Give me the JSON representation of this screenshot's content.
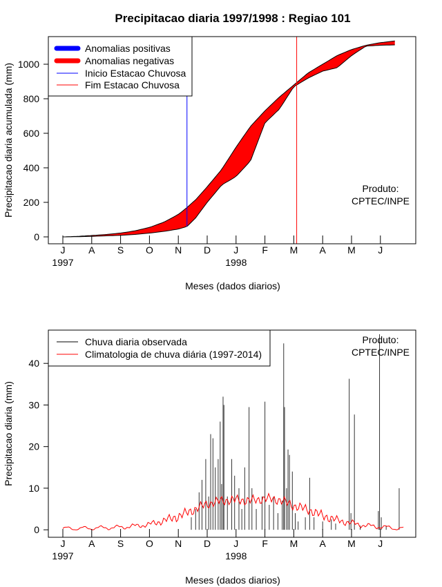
{
  "chart_data": [
    {
      "type": "area",
      "title": "Precipitacao diaria 1997/1998 : Regiao 101",
      "xlabel": "Meses (dados diarios)",
      "ylabel": "Precipitacao diaria acumulada (mm)",
      "ylim": [
        -40,
        1160
      ],
      "yticks": [
        0,
        200,
        400,
        600,
        800,
        1000
      ],
      "month_ticks": [
        "J",
        "A",
        "S",
        "O",
        "N",
        "D",
        "J",
        "F",
        "M",
        "A",
        "M",
        "J"
      ],
      "year_labels": [
        {
          "month_index": 0,
          "text": "1997"
        },
        {
          "month_index": 6,
          "text": "1998"
        }
      ],
      "legend": {
        "position": "top-left",
        "entries": [
          {
            "label": "Anomalias positivas",
            "color": "#0000ff",
            "style": "thick"
          },
          {
            "label": "Anomalias negativas",
            "color": "#ff0000",
            "style": "thick"
          },
          {
            "label": "Inicio Estacao Chuvosa",
            "color": "#0000ff",
            "style": "thin"
          },
          {
            "label": "Fim Estacao Chuvosa",
            "color": "#ff0000",
            "style": "thin"
          }
        ]
      },
      "annotation": [
        "Produto:",
        "CPTEC/INPE"
      ],
      "season_start_month": 4.3,
      "season_end_month": 8.1,
      "climatology_cumulative": {
        "months": [
          0,
          0.5,
          1,
          1.5,
          2,
          2.5,
          3,
          3.5,
          4,
          4.3,
          4.6,
          5,
          5.5,
          6,
          6.5,
          7,
          7.5,
          8,
          8.5,
          9,
          9.5,
          10,
          10.5,
          11,
          11.5
        ],
        "values": [
          0,
          3,
          8,
          14,
          22,
          35,
          55,
          85,
          130,
          170,
          215,
          290,
          390,
          520,
          640,
          730,
          810,
          880,
          950,
          1000,
          1050,
          1085,
          1110,
          1125,
          1135
        ]
      },
      "observed_cumulative": {
        "months": [
          0,
          0.5,
          1,
          1.5,
          2,
          2.5,
          3,
          3.5,
          4,
          4.3,
          4.6,
          5,
          5.5,
          6,
          6.5,
          7,
          7.5,
          8,
          8.5,
          9,
          9.5,
          10,
          10.5,
          11,
          11.5
        ],
        "values": [
          0,
          1,
          3,
          6,
          9,
          14,
          22,
          32,
          45,
          60,
          110,
          200,
          300,
          350,
          440,
          660,
          740,
          870,
          920,
          960,
          980,
          1050,
          1105,
          1110,
          1112
        ]
      }
    },
    {
      "type": "bar",
      "title": "",
      "xlabel": "Meses (dados diarios)",
      "ylabel": "Precipitacao diaria (mm)",
      "ylim": [
        -1.8,
        48
      ],
      "yticks": [
        0,
        10,
        20,
        30,
        40
      ],
      "month_ticks": [
        "J",
        "A",
        "S",
        "O",
        "N",
        "D",
        "J",
        "F",
        "M",
        "A",
        "M",
        "J"
      ],
      "year_labels": [
        {
          "month_index": 0,
          "text": "1997"
        },
        {
          "month_index": 6,
          "text": "1998"
        }
      ],
      "legend": {
        "position": "top-left",
        "entries": [
          {
            "label": "Chuva diaria observada",
            "color": "#000000",
            "style": "thin"
          },
          {
            "label": "Climatologia de chuva diária (1997-2014)",
            "color": "#ff0000",
            "style": "thin"
          }
        ]
      },
      "annotation": [
        "Produto:",
        "CPTEC/INPE"
      ],
      "daily_observed_peaks": [
        {
          "month": 4.45,
          "value": 3
        },
        {
          "month": 4.6,
          "value": 5
        },
        {
          "month": 4.72,
          "value": 9
        },
        {
          "month": 4.82,
          "value": 12
        },
        {
          "month": 4.95,
          "value": 17
        },
        {
          "month": 5.05,
          "value": 8
        },
        {
          "month": 5.12,
          "value": 23
        },
        {
          "month": 5.2,
          "value": 22
        },
        {
          "month": 5.28,
          "value": 15
        },
        {
          "month": 5.38,
          "value": 17
        },
        {
          "month": 5.45,
          "value": 26
        },
        {
          "month": 5.5,
          "value": 11
        },
        {
          "month": 5.55,
          "value": 32
        },
        {
          "month": 5.58,
          "value": 30
        },
        {
          "month": 5.7,
          "value": 8
        },
        {
          "month": 5.85,
          "value": 17
        },
        {
          "month": 5.95,
          "value": 13
        },
        {
          "month": 6.1,
          "value": 10
        },
        {
          "month": 6.2,
          "value": 5
        },
        {
          "month": 6.3,
          "value": 15
        },
        {
          "month": 6.45,
          "value": 29.5
        },
        {
          "month": 6.55,
          "value": 10
        },
        {
          "month": 6.7,
          "value": 5
        },
        {
          "month": 6.9,
          "value": 8
        },
        {
          "month": 7.0,
          "value": 30.8
        },
        {
          "month": 7.15,
          "value": 6
        },
        {
          "month": 7.3,
          "value": 8
        },
        {
          "month": 7.45,
          "value": 4
        },
        {
          "month": 7.6,
          "value": 7
        },
        {
          "month": 7.65,
          "value": 44.8
        },
        {
          "month": 7.68,
          "value": 29.5
        },
        {
          "month": 7.75,
          "value": 10
        },
        {
          "month": 7.8,
          "value": 19.3
        },
        {
          "month": 7.85,
          "value": 18
        },
        {
          "month": 7.95,
          "value": 14
        },
        {
          "month": 8.05,
          "value": 4
        },
        {
          "month": 8.15,
          "value": 2
        },
        {
          "month": 8.4,
          "value": 3
        },
        {
          "month": 8.55,
          "value": 12.5
        },
        {
          "month": 8.7,
          "value": 3
        },
        {
          "month": 9.0,
          "value": 2
        },
        {
          "month": 9.3,
          "value": 2.5
        },
        {
          "month": 9.45,
          "value": 1.5
        },
        {
          "month": 9.92,
          "value": 36.3
        },
        {
          "month": 9.98,
          "value": 4
        },
        {
          "month": 10.1,
          "value": 27.7
        },
        {
          "month": 10.3,
          "value": 1
        },
        {
          "month": 10.93,
          "value": 4.5
        },
        {
          "month": 10.97,
          "value": 47
        },
        {
          "month": 11.03,
          "value": 3
        },
        {
          "month": 11.2,
          "value": 1
        },
        {
          "month": 11.65,
          "value": 10
        }
      ],
      "climatology_daily": {
        "months": [
          0,
          0.5,
          1,
          1.5,
          2,
          2.5,
          3,
          3.5,
          4,
          4.5,
          5,
          5.5,
          6,
          6.5,
          7,
          7.5,
          8,
          8.5,
          9,
          9.5,
          10,
          10.5,
          11,
          11.5,
          11.8
        ],
        "values": [
          0.3,
          0.3,
          0.4,
          0.5,
          0.6,
          0.9,
          1.3,
          2.2,
          3.2,
          4.7,
          6.2,
          7.0,
          7.2,
          7.0,
          7.5,
          7.2,
          5.8,
          4.8,
          3.4,
          2.3,
          1.6,
          1.0,
          0.7,
          0.4,
          0.3
        ]
      }
    }
  ]
}
